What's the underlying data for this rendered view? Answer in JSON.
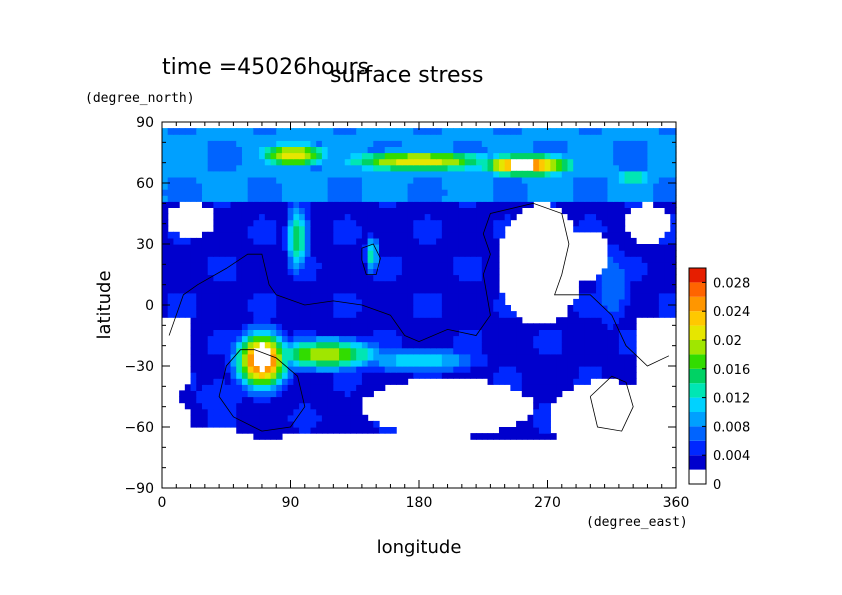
{
  "chart_data": {
    "type": "heatmap",
    "title": "surface stress",
    "subtitle": "time =45026hours",
    "xlabel": "longitude",
    "ylabel": "latitude",
    "x_unit": "(degree_east)",
    "y_unit": "(degree_north)",
    "xlim": [
      0,
      360
    ],
    "ylim": [
      -90,
      90
    ],
    "x_ticks": [
      0,
      90,
      180,
      270,
      360
    ],
    "y_ticks": [
      -90,
      -60,
      -30,
      0,
      30,
      60,
      90
    ],
    "x_tick_labels": [
      "0",
      "90",
      "180",
      "270",
      "360"
    ],
    "y_tick_labels": [
      "−90",
      "−60",
      "−30",
      "0",
      "30",
      "60",
      "90"
    ],
    "colorbar": {
      "levels": [
        0,
        0.002,
        0.004,
        0.006,
        0.008,
        0.01,
        0.012,
        0.014,
        0.016,
        0.018,
        0.02,
        0.022,
        0.024,
        0.026,
        0.028,
        0.03
      ],
      "tick_values": [
        0,
        0.004,
        0.008,
        0.012,
        0.016,
        0.02,
        0.024,
        0.028
      ],
      "tick_labels": [
        "0",
        "0.004",
        "0.008",
        "0.012",
        "0.016",
        "0.02",
        "0.024",
        "0.028"
      ],
      "colors": [
        "#ffffff",
        "#0000cd",
        "#0028ff",
        "#0064ff",
        "#00a0ff",
        "#00d2ff",
        "#00e6b4",
        "#00d264",
        "#32dc00",
        "#a0e600",
        "#e6e600",
        "#ffc800",
        "#ff9600",
        "#ff6400",
        "#e61e00"
      ]
    },
    "grid": false,
    "legend": "colorbar right",
    "field": {
      "background": 0.001,
      "bands": [
        {
          "lon_range": [
            0,
            360
          ],
          "lat_range": [
            52,
            86
          ],
          "value": 0.009
        },
        {
          "lon_range": [
            0,
            360
          ],
          "lat_range": [
            -5,
            52
          ],
          "value": 0.004
        },
        {
          "lon_range": [
            20,
            330
          ],
          "lat_range": [
            -65,
            -5
          ],
          "value": 0.004
        }
      ],
      "blobs": [
        {
          "lon": 92,
          "lat": 74,
          "rlon": 28,
          "rlat": 7,
          "value": 0.022
        },
        {
          "lon": 180,
          "lat": 71,
          "rlon": 60,
          "rlat": 6,
          "value": 0.022
        },
        {
          "lon": 255,
          "lat": 69,
          "rlon": 35,
          "rlat": 6,
          "value": 0.028
        },
        {
          "lon": 330,
          "lat": 63,
          "rlon": 20,
          "rlat": 5,
          "value": 0.014
        },
        {
          "lon": 95,
          "lat": 33,
          "rlon": 8,
          "rlat": 18,
          "value": 0.016
        },
        {
          "lon": 147,
          "lat": 25,
          "rlon": 5,
          "rlat": 10,
          "value": 0.014
        },
        {
          "lon": 70,
          "lat": -27,
          "rlon": 18,
          "rlat": 14,
          "value": 0.03
        },
        {
          "lon": 115,
          "lat": -24,
          "rlon": 40,
          "rlat": 8,
          "value": 0.02
        },
        {
          "lon": 180,
          "lat": -27,
          "rlon": 45,
          "rlat": 7,
          "value": 0.012
        },
        {
          "lon": 315,
          "lat": 10,
          "rlon": 15,
          "rlat": 25,
          "value": 0.008
        },
        {
          "lon": 40,
          "lat": -45,
          "rlon": 25,
          "rlat": 12,
          "value": 0.006
        }
      ],
      "holes": [
        {
          "lon": 20,
          "lat": 42,
          "rlon": 18,
          "rlat": 8
        },
        {
          "lon": 265,
          "lat": 20,
          "rlon": 30,
          "rlat": 30
        },
        {
          "lon": 340,
          "lat": 40,
          "rlon": 15,
          "rlat": 10
        },
        {
          "lon": 300,
          "lat": 25,
          "rlon": 12,
          "rlat": 12
        },
        {
          "lon": 200,
          "lat": -50,
          "rlon": 60,
          "rlat": 14
        },
        {
          "lon": 310,
          "lat": -55,
          "rlon": 40,
          "rlat": 18
        },
        {
          "lon": 30,
          "lat": -70,
          "rlon": 40,
          "rlat": 10
        },
        {
          "lon": 150,
          "lat": -70,
          "rlon": 90,
          "rlat": 8
        },
        {
          "lon": 345,
          "lat": -20,
          "rlon": 12,
          "rlat": 15
        }
      ],
      "white_spots": [
        {
          "lon": 70,
          "lat": -25,
          "rlon": 6,
          "rlat": 7
        },
        {
          "lon": 252,
          "lat": 69,
          "rlon": 7,
          "rlat": 3
        }
      ]
    },
    "contours": [
      {
        "name": "africa-outline",
        "points": [
          [
            5,
            -15
          ],
          [
            15,
            5
          ],
          [
            25,
            10
          ],
          [
            45,
            18
          ],
          [
            60,
            25
          ],
          [
            70,
            25
          ],
          [
            75,
            10
          ],
          [
            80,
            5
          ],
          [
            100,
            0
          ],
          [
            120,
            2
          ],
          [
            140,
            0
          ],
          [
            160,
            -5
          ],
          [
            170,
            -15
          ],
          [
            180,
            -18
          ],
          [
            200,
            -12
          ],
          [
            220,
            -15
          ],
          [
            230,
            -5
          ],
          [
            225,
            15
          ],
          [
            230,
            25
          ],
          [
            225,
            35
          ],
          [
            230,
            45
          ],
          [
            260,
            50
          ],
          [
            280,
            45
          ],
          [
            285,
            30
          ],
          [
            280,
            15
          ],
          [
            275,
            5
          ],
          [
            300,
            5
          ],
          [
            315,
            -5
          ],
          [
            325,
            -20
          ],
          [
            340,
            -30
          ],
          [
            355,
            -25
          ]
        ]
      },
      {
        "name": "south-landmass",
        "points": [
          [
            65,
            -22
          ],
          [
            80,
            -26
          ],
          [
            95,
            -35
          ],
          [
            100,
            -50
          ],
          [
            90,
            -60
          ],
          [
            70,
            -62
          ],
          [
            50,
            -55
          ],
          [
            40,
            -45
          ],
          [
            45,
            -30
          ],
          [
            55,
            -22
          ],
          [
            65,
            -22
          ]
        ]
      },
      {
        "name": "island-a",
        "points": [
          [
            140,
            28
          ],
          [
            148,
            30
          ],
          [
            153,
            23
          ],
          [
            150,
            15
          ],
          [
            143,
            15
          ],
          [
            140,
            22
          ],
          [
            140,
            28
          ]
        ]
      },
      {
        "name": "island-b",
        "points": [
          [
            300,
            -45
          ],
          [
            315,
            -35
          ],
          [
            325,
            -38
          ],
          [
            330,
            -50
          ],
          [
            322,
            -62
          ],
          [
            305,
            -60
          ],
          [
            300,
            -45
          ]
        ]
      }
    ]
  }
}
